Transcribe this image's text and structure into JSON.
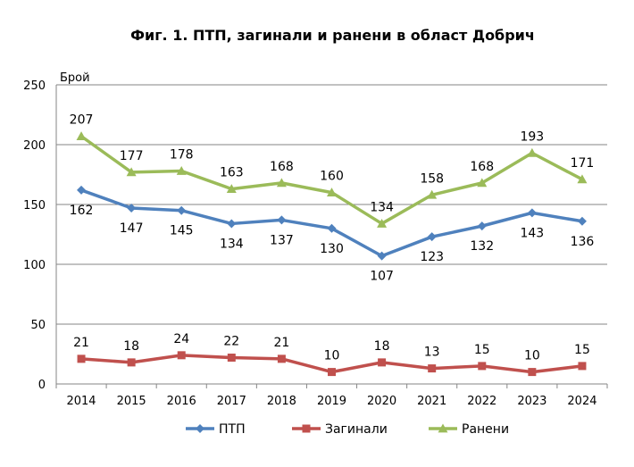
{
  "chart_data": {
    "type": "line",
    "title": "Фиг. 1. ПТП, загинали и ранени в област Добрич",
    "ylabel": "Брой",
    "xlabel": "",
    "ylim": [
      0,
      250
    ],
    "yticks": [
      0,
      50,
      100,
      150,
      200,
      250
    ],
    "grid": true,
    "legend_position": "bottom",
    "categories": [
      "2014",
      "2015",
      "2016",
      "2017",
      "2018",
      "2019",
      "2020",
      "2021",
      "2022",
      "2023",
      "2024"
    ],
    "series": [
      {
        "name": "ПТП",
        "color": "#4F81BD",
        "marker": "diamond",
        "values": [
          162,
          147,
          145,
          134,
          137,
          130,
          107,
          123,
          132,
          143,
          136
        ],
        "label_pos": "below"
      },
      {
        "name": "Загинали",
        "color": "#C0504D",
        "marker": "square",
        "values": [
          21,
          18,
          24,
          22,
          21,
          10,
          18,
          13,
          15,
          10,
          15
        ],
        "label_pos": "above"
      },
      {
        "name": "Ранени",
        "color": "#9BBB59",
        "marker": "triangle",
        "values": [
          207,
          177,
          178,
          163,
          168,
          160,
          134,
          158,
          168,
          193,
          171
        ],
        "label_pos": "above"
      }
    ]
  }
}
